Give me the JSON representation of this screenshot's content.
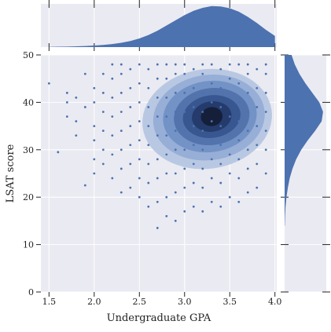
{
  "chart_data": {
    "type": "jointplot",
    "xlabel": "Undergraduate GPA",
    "ylabel": "LSAT score",
    "xlim": [
      1.41,
      4.02
    ],
    "ylim": [
      0,
      50
    ],
    "xticks": [
      1.5,
      2.0,
      2.5,
      3.0,
      3.5,
      4.0
    ],
    "yticks": [
      0,
      10,
      20,
      30,
      40,
      50
    ],
    "tick_labels_x": [
      "1.5",
      "2.0",
      "2.5",
      "3.0",
      "3.5",
      "4.0"
    ],
    "grid": true,
    "color": "#4c72b0",
    "points": [
      [
        1.5,
        44
      ],
      [
        1.6,
        29.5
      ],
      [
        1.7,
        37
      ],
      [
        1.7,
        40
      ],
      [
        1.7,
        42
      ],
      [
        1.8,
        33
      ],
      [
        1.8,
        36
      ],
      [
        1.8,
        41
      ],
      [
        1.9,
        22.5
      ],
      [
        1.9,
        39
      ],
      [
        1.9,
        46
      ],
      [
        2.0,
        25
      ],
      [
        2.0,
        28
      ],
      [
        2.0,
        32
      ],
      [
        2.0,
        35
      ],
      [
        2.0,
        40
      ],
      [
        2.0,
        43
      ],
      [
        2.1,
        27
      ],
      [
        2.1,
        30
      ],
      [
        2.1,
        34
      ],
      [
        2.1,
        38
      ],
      [
        2.1,
        42
      ],
      [
        2.1,
        46
      ],
      [
        2.2,
        24
      ],
      [
        2.2,
        29
      ],
      [
        2.2,
        33
      ],
      [
        2.2,
        37
      ],
      [
        2.2,
        41
      ],
      [
        2.2,
        45
      ],
      [
        2.2,
        48
      ],
      [
        2.3,
        21
      ],
      [
        2.3,
        26
      ],
      [
        2.3,
        30
      ],
      [
        2.3,
        34
      ],
      [
        2.3,
        38
      ],
      [
        2.3,
        42
      ],
      [
        2.3,
        46
      ],
      [
        2.3,
        48
      ],
      [
        2.4,
        22
      ],
      [
        2.4,
        27
      ],
      [
        2.4,
        31
      ],
      [
        2.4,
        35
      ],
      [
        2.4,
        39
      ],
      [
        2.4,
        43
      ],
      [
        2.4,
        47
      ],
      [
        2.5,
        20
      ],
      [
        2.5,
        24
      ],
      [
        2.5,
        28
      ],
      [
        2.5,
        32
      ],
      [
        2.5,
        36
      ],
      [
        2.5,
        40
      ],
      [
        2.5,
        44
      ],
      [
        2.5,
        48
      ],
      [
        2.6,
        18
      ],
      [
        2.6,
        23
      ],
      [
        2.6,
        27
      ],
      [
        2.6,
        31
      ],
      [
        2.6,
        35
      ],
      [
        2.6,
        39
      ],
      [
        2.6,
        43
      ],
      [
        2.6,
        47
      ],
      [
        2.7,
        13.5
      ],
      [
        2.7,
        19
      ],
      [
        2.7,
        24
      ],
      [
        2.7,
        28
      ],
      [
        2.7,
        33
      ],
      [
        2.7,
        37
      ],
      [
        2.7,
        41
      ],
      [
        2.7,
        45
      ],
      [
        2.7,
        48
      ],
      [
        2.8,
        16
      ],
      [
        2.8,
        20
      ],
      [
        2.8,
        25
      ],
      [
        2.8,
        29
      ],
      [
        2.8,
        33
      ],
      [
        2.8,
        37
      ],
      [
        2.8,
        41
      ],
      [
        2.8,
        45
      ],
      [
        2.8,
        48
      ],
      [
        2.9,
        15
      ],
      [
        2.9,
        21
      ],
      [
        2.9,
        25
      ],
      [
        2.9,
        30
      ],
      [
        2.9,
        34
      ],
      [
        2.9,
        38
      ],
      [
        2.9,
        42
      ],
      [
        2.9,
        46
      ],
      [
        2.9,
        48
      ],
      [
        3.0,
        17
      ],
      [
        3.0,
        22
      ],
      [
        3.0,
        26
      ],
      [
        3.0,
        30
      ],
      [
        3.0,
        34
      ],
      [
        3.0,
        38
      ],
      [
        3.0,
        42
      ],
      [
        3.0,
        46
      ],
      [
        3.0,
        48
      ],
      [
        3.1,
        18
      ],
      [
        3.1,
        23
      ],
      [
        3.1,
        27
      ],
      [
        3.1,
        31
      ],
      [
        3.1,
        35
      ],
      [
        3.1,
        39
      ],
      [
        3.1,
        43
      ],
      [
        3.1,
        47
      ],
      [
        3.2,
        17
      ],
      [
        3.2,
        22
      ],
      [
        3.2,
        26
      ],
      [
        3.2,
        30
      ],
      [
        3.2,
        34
      ],
      [
        3.2,
        38
      ],
      [
        3.2,
        42
      ],
      [
        3.2,
        46
      ],
      [
        3.2,
        48
      ],
      [
        3.3,
        19
      ],
      [
        3.3,
        24
      ],
      [
        3.3,
        28
      ],
      [
        3.3,
        32
      ],
      [
        3.3,
        36
      ],
      [
        3.3,
        40
      ],
      [
        3.3,
        44
      ],
      [
        3.3,
        48
      ],
      [
        3.4,
        18
      ],
      [
        3.4,
        23
      ],
      [
        3.4,
        27
      ],
      [
        3.4,
        31
      ],
      [
        3.4,
        35
      ],
      [
        3.4,
        39
      ],
      [
        3.4,
        43
      ],
      [
        3.4,
        47
      ],
      [
        3.5,
        20
      ],
      [
        3.5,
        25
      ],
      [
        3.5,
        29
      ],
      [
        3.5,
        33
      ],
      [
        3.5,
        37
      ],
      [
        3.5,
        41
      ],
      [
        3.5,
        45
      ],
      [
        3.5,
        48
      ],
      [
        3.6,
        19
      ],
      [
        3.6,
        24
      ],
      [
        3.6,
        28
      ],
      [
        3.6,
        32
      ],
      [
        3.6,
        36
      ],
      [
        3.6,
        40
      ],
      [
        3.6,
        44
      ],
      [
        3.6,
        48
      ],
      [
        3.7,
        21
      ],
      [
        3.7,
        26
      ],
      [
        3.7,
        30
      ],
      [
        3.7,
        34
      ],
      [
        3.7,
        38
      ],
      [
        3.7,
        42
      ],
      [
        3.7,
        46
      ],
      [
        3.7,
        48
      ],
      [
        3.8,
        22
      ],
      [
        3.8,
        27
      ],
      [
        3.8,
        31
      ],
      [
        3.8,
        35
      ],
      [
        3.8,
        39
      ],
      [
        3.8,
        43
      ],
      [
        3.8,
        47
      ],
      [
        3.9,
        25
      ],
      [
        3.9,
        30
      ],
      [
        3.9,
        34
      ],
      [
        3.9,
        38
      ],
      [
        3.9,
        42
      ],
      [
        3.9,
        46
      ],
      [
        3.9,
        48
      ]
    ],
    "kde_levels": [
      {
        "cx": 3.25,
        "cy": 36.5,
        "rx": 0.72,
        "ry": 10.5,
        "color": "#b9c8e2"
      },
      {
        "cx": 3.27,
        "cy": 36.8,
        "rx": 0.62,
        "ry": 9,
        "color": "#97aed6"
      },
      {
        "cx": 3.28,
        "cy": 37,
        "rx": 0.52,
        "ry": 7.5,
        "color": "#7392c6"
      },
      {
        "cx": 3.3,
        "cy": 37,
        "rx": 0.42,
        "ry": 6,
        "color": "#5373ad"
      },
      {
        "cx": 3.3,
        "cy": 37,
        "rx": 0.32,
        "ry": 4.5,
        "color": "#385690"
      },
      {
        "cx": 3.3,
        "cy": 37,
        "rx": 0.22,
        "ry": 3.2,
        "color": "#243b6b"
      },
      {
        "cx": 3.3,
        "cy": 37,
        "rx": 0.12,
        "ry": 2,
        "color": "#151f3a"
      }
    ],
    "top_density": {
      "x": [
        1.5,
        1.6,
        1.7,
        1.8,
        1.9,
        2.0,
        2.1,
        2.2,
        2.3,
        2.4,
        2.5,
        2.6,
        2.7,
        2.8,
        2.9,
        3.0,
        3.1,
        3.2,
        3.3,
        3.4,
        3.5,
        3.6,
        3.7,
        3.8,
        3.9,
        4.0
      ],
      "values": [
        0.005,
        0.008,
        0.012,
        0.018,
        0.026,
        0.036,
        0.05,
        0.07,
        0.1,
        0.14,
        0.2,
        0.28,
        0.38,
        0.5,
        0.62,
        0.74,
        0.84,
        0.91,
        0.95,
        0.94,
        0.9,
        0.82,
        0.7,
        0.56,
        0.4,
        0.26
      ],
      "ylim": [
        0,
        1.0
      ]
    },
    "right_density": {
      "y": [
        14,
        16,
        18,
        20,
        22,
        24,
        26,
        28,
        30,
        32,
        34,
        36,
        38,
        40,
        42,
        44,
        46,
        48,
        50
      ],
      "values": [
        0.005,
        0.01,
        0.02,
        0.04,
        0.07,
        0.11,
        0.17,
        0.25,
        0.36,
        0.5,
        0.66,
        0.8,
        0.83,
        0.75,
        0.6,
        0.45,
        0.32,
        0.22,
        0.15
      ],
      "xlim": [
        0,
        0.9
      ]
    }
  }
}
